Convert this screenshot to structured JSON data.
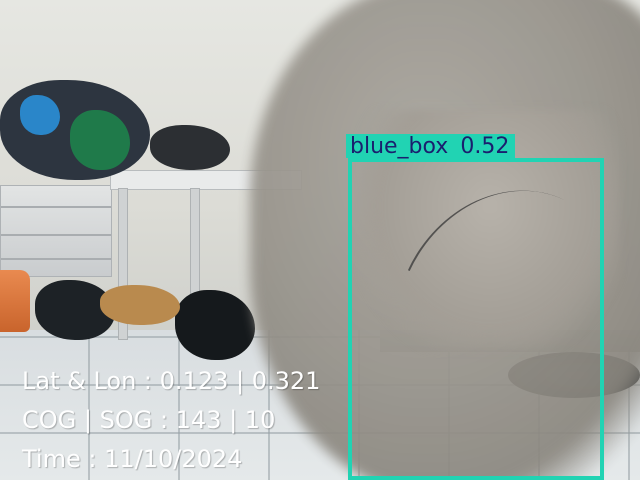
{
  "detection": {
    "class_label": "blue_box",
    "confidence": "0.52",
    "box_color": "#21d3b3",
    "label_text_color": "#1a1f6e"
  },
  "telemetry": {
    "lat_lon": "Lat & Lon : 0.123 | 0.321",
    "cog_sog": "COG | SOG : 143 | 10",
    "time": "Time : 11/10/2024"
  }
}
